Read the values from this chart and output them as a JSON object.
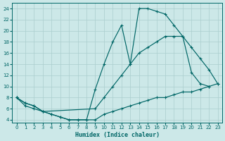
{
  "xlabel": "Humidex (Indice chaleur)",
  "bg_color": "#cce8e8",
  "grid_color": "#aacece",
  "line_color": "#006666",
  "xlim": [
    -0.5,
    23.5
  ],
  "ylim": [
    3.5,
    25.0
  ],
  "xticks": [
    0,
    1,
    2,
    3,
    4,
    5,
    6,
    7,
    8,
    9,
    10,
    11,
    12,
    13,
    14,
    15,
    16,
    17,
    18,
    19,
    20,
    21,
    22,
    23
  ],
  "yticks": [
    4,
    6,
    8,
    10,
    12,
    14,
    16,
    18,
    20,
    22,
    24
  ],
  "curve_upper_x": [
    0,
    1,
    2,
    3,
    4,
    5,
    6,
    7,
    8,
    9,
    10,
    11,
    12,
    13,
    14,
    15,
    16,
    17,
    18,
    19,
    20,
    21,
    22
  ],
  "curve_upper_y": [
    8,
    7,
    6.5,
    5.5,
    5,
    4.5,
    4,
    4,
    4,
    9.5,
    14,
    18,
    21,
    14,
    24,
    24,
    23.5,
    23,
    21,
    19,
    12.5,
    10.5,
    10
  ],
  "curve_mid_x": [
    0,
    1,
    2,
    3,
    9,
    10,
    11,
    12,
    13,
    14,
    15,
    16,
    17,
    18,
    19,
    20,
    21,
    22,
    23
  ],
  "curve_mid_y": [
    8,
    7,
    6.5,
    5.5,
    6,
    8,
    10,
    12,
    14,
    16,
    17,
    18,
    19,
    19,
    19,
    17,
    15,
    13,
    10.5
  ],
  "curve_low_x": [
    0,
    1,
    2,
    3,
    4,
    5,
    6,
    7,
    8,
    9,
    10,
    11,
    12,
    13,
    14,
    15,
    16,
    17,
    18,
    19,
    20,
    21,
    22,
    23
  ],
  "curve_low_y": [
    8,
    6.5,
    6,
    5.5,
    5,
    4.5,
    4,
    4,
    4,
    4,
    5,
    5.5,
    6,
    6.5,
    7,
    7.5,
    8,
    8,
    8.5,
    9,
    9,
    9.5,
    10,
    10.5
  ]
}
